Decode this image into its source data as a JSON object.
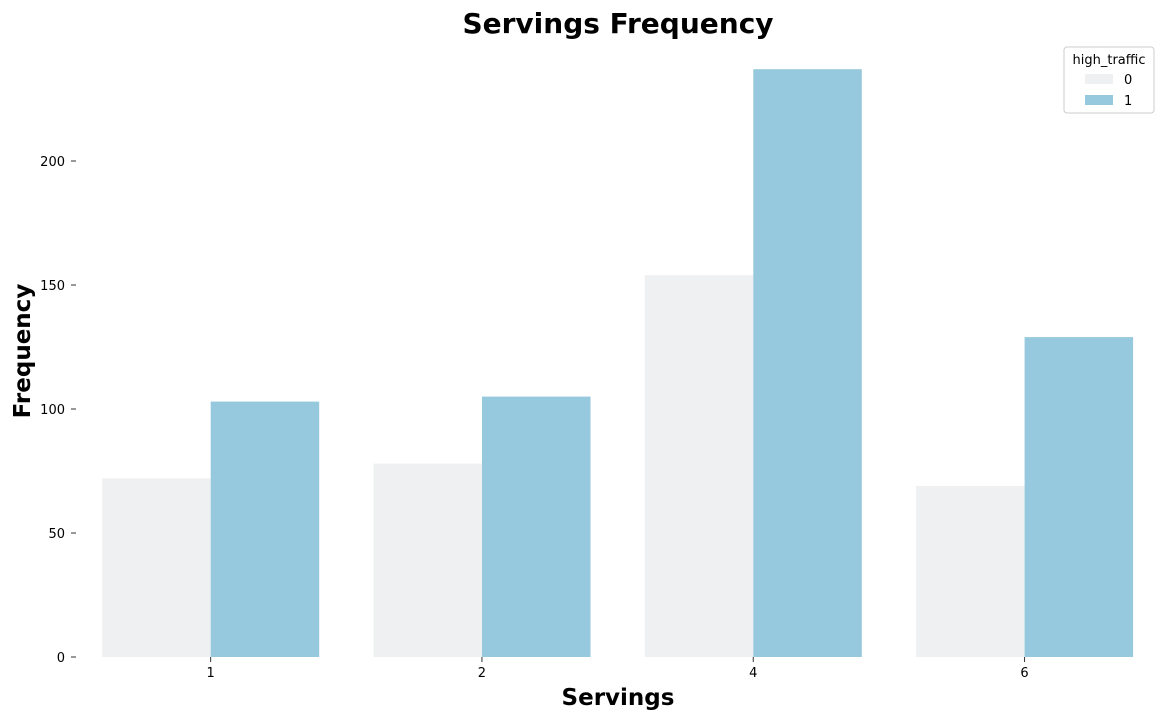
{
  "chart_data": {
    "type": "bar",
    "title": "Servings Frequency",
    "xlabel": "Servings",
    "ylabel": "Frequency",
    "categories": [
      "1",
      "2",
      "4",
      "6"
    ],
    "series": [
      {
        "name": "0",
        "values": [
          72,
          78,
          154,
          69
        ],
        "color": "#eff0f2"
      },
      {
        "name": "1",
        "values": [
          103,
          105,
          237,
          129
        ],
        "color": "#96c9de"
      }
    ],
    "ylim": [
      0,
      245
    ],
    "yticks": [
      0,
      50,
      100,
      150,
      200
    ],
    "legend": {
      "title": "high_traffic",
      "placement": "top-right"
    },
    "grid": false
  }
}
